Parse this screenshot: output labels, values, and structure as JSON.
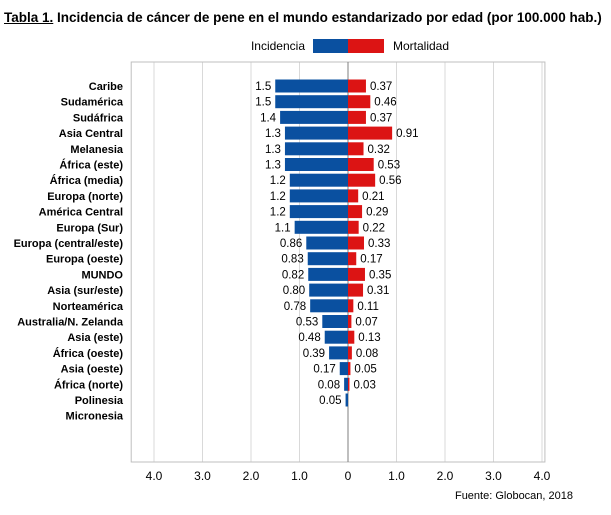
{
  "chart_data": {
    "type": "bar",
    "orientation": "horizontal-butterfly",
    "title_prefix": "Tabla 1.",
    "title": "Incidencia de cáncer de pene en el mundo estandarizado por edad (por 100.000 hab.)",
    "categories": [
      "Caribe",
      "Sudamérica",
      "Sudáfrica",
      "Asia Central",
      "Melanesia",
      "África (este)",
      "África (media)",
      "Europa (norte)",
      "América Central",
      "Europa (Sur)",
      "Europa (central/este)",
      "Europa (oeste)",
      "MUNDO",
      "Asia (sur/este)",
      "Norteamérica",
      "Australia/N. Zelanda",
      "Asia (este)",
      "África (oeste)",
      "Asia (oeste)",
      "África (norte)",
      "Polinesia",
      "Micronesia"
    ],
    "series": [
      {
        "name": "Incidencia",
        "color": "#0a50a0",
        "side": "left",
        "labels": [
          "1.5",
          "1.5",
          "1.4",
          "1.3",
          "1.3",
          "1.3",
          "1.2",
          "1.2",
          "1.2",
          "1.1",
          "0.86",
          "0.83",
          "0.82",
          "0.80",
          "0.78",
          "0.53",
          "0.48",
          "0.39",
          "0.17",
          "0.08",
          "0.05",
          ""
        ],
        "values": [
          1.5,
          1.5,
          1.4,
          1.3,
          1.3,
          1.3,
          1.2,
          1.2,
          1.2,
          1.1,
          0.86,
          0.83,
          0.82,
          0.8,
          0.78,
          0.53,
          0.48,
          0.39,
          0.17,
          0.08,
          0.05,
          null
        ]
      },
      {
        "name": "Mortalidad",
        "color": "#dc1414",
        "side": "right",
        "labels": [
          "0.37",
          "0.46",
          "0.37",
          "0.91",
          "0.32",
          "0.53",
          "0.56",
          "0.21",
          "0.29",
          "0.22",
          "0.33",
          "0.17",
          "0.35",
          "0.31",
          "0.11",
          "0.07",
          "0.13",
          "0.08",
          "0.05",
          "0.03",
          "",
          ""
        ],
        "values": [
          0.37,
          0.46,
          0.37,
          0.91,
          0.32,
          0.53,
          0.56,
          0.21,
          0.29,
          0.22,
          0.33,
          0.17,
          0.35,
          0.31,
          0.11,
          0.07,
          0.13,
          0.08,
          0.05,
          0.03,
          null,
          null
        ]
      }
    ],
    "xticks": [
      "4.0",
      "3.0",
      "2.0",
      "1.0",
      "0",
      "1.0",
      "2.0",
      "3.0",
      "4.0"
    ],
    "xtick_values": [
      -4,
      -3,
      -2,
      -1,
      0,
      1,
      2,
      3,
      4
    ],
    "xlim": [
      -4.47,
      4.06
    ],
    "grid": true,
    "legend": "top-center",
    "source": "Fuente: Globocan, 2018"
  }
}
